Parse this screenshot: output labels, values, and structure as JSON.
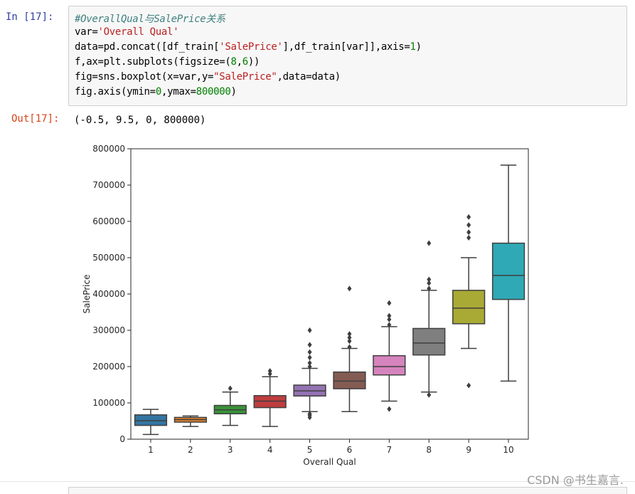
{
  "cell": {
    "in_prompt": "In  [17]:",
    "out_prompt": "Out[17]:",
    "code": {
      "comment": "#OverallQual与SalePrice关系",
      "line2": {
        "a": "var=",
        "s": "'Overall Qual'"
      },
      "line3": {
        "a": "data=pd.concat([df_train[",
        "s": "'SalePrice'",
        "b": "],df_train[var]],axis=",
        "n": "1",
        "c": ")"
      },
      "line4": {
        "a": "f,ax=plt.subplots(figsize=(",
        "n1": "8",
        "m": ",",
        "n2": "6",
        "c": "))"
      },
      "line5": {
        "a": "fig=sns.boxplot(x=var,y=",
        "s": "\"SalePrice\"",
        "b": ",data=data)"
      },
      "line6": {
        "a": "fig.axis(ymin=",
        "n1": "0",
        "m": ",ymax=",
        "n2": "800000",
        "c": ")"
      }
    },
    "output_text": "(-0.5, 9.5, 0, 800000)"
  },
  "chart_data": {
    "type": "boxplot",
    "xlabel": "Overall Qual",
    "ylabel": "SalePrice",
    "ylim": [
      0,
      800000
    ],
    "xlim": [
      -0.5,
      9.5
    ],
    "yticks": [
      0,
      100000,
      200000,
      300000,
      400000,
      500000,
      600000,
      700000,
      800000
    ],
    "categories": [
      "1",
      "2",
      "3",
      "4",
      "5",
      "6",
      "7",
      "8",
      "9",
      "10"
    ],
    "boxes": [
      {
        "category": "1",
        "whisker_low": 13000,
        "q1": 38000,
        "median": 51000,
        "q3": 67000,
        "whisker_high": 82000,
        "outliers": [],
        "color": "#3274a1"
      },
      {
        "category": "2",
        "whisker_low": 35000,
        "q1": 47000,
        "median": 54000,
        "q3": 60000,
        "whisker_high": 64000,
        "outliers": [],
        "color": "#e1812c"
      },
      {
        "category": "3",
        "whisker_low": 38000,
        "q1": 70000,
        "median": 81000,
        "q3": 93000,
        "whisker_high": 130000,
        "outliers": [
          140000
        ],
        "color": "#3a923a"
      },
      {
        "category": "4",
        "whisker_low": 35000,
        "q1": 87000,
        "median": 105000,
        "q3": 120000,
        "whisker_high": 172000,
        "outliers": [
          180000,
          188000
        ],
        "color": "#c03d3e"
      },
      {
        "category": "5",
        "whisker_low": 76000,
        "q1": 119000,
        "median": 133000,
        "q3": 149000,
        "whisker_high": 195000,
        "outliers": [
          60000,
          66000,
          70000,
          200000,
          210000,
          225000,
          240000,
          260000,
          300000
        ],
        "color": "#9372b2"
      },
      {
        "category": "6",
        "whisker_low": 76000,
        "q1": 139000,
        "median": 160000,
        "q3": 185000,
        "whisker_high": 250000,
        "outliers": [
          254000,
          270000,
          280000,
          290000,
          415000
        ],
        "color": "#845b53"
      },
      {
        "category": "7",
        "whisker_low": 105000,
        "q1": 177000,
        "median": 200000,
        "q3": 230000,
        "whisker_high": 310000,
        "outliers": [
          83000,
          315000,
          330000,
          340000,
          375000
        ],
        "color": "#d684bd"
      },
      {
        "category": "8",
        "whisker_low": 130000,
        "q1": 232000,
        "median": 265000,
        "q3": 305000,
        "whisker_high": 410000,
        "outliers": [
          122000,
          415000,
          430000,
          440000,
          540000
        ],
        "color": "#7f7f7f"
      },
      {
        "category": "9",
        "whisker_low": 250000,
        "q1": 318000,
        "median": 361000,
        "q3": 410000,
        "whisker_high": 500000,
        "outliers": [
          148000,
          555000,
          570000,
          590000,
          612000
        ],
        "color": "#a9aa35"
      },
      {
        "category": "10",
        "whisker_low": 160000,
        "q1": 385000,
        "median": 451000,
        "q3": 540000,
        "whisker_high": 755000,
        "outliers": [],
        "color": "#2fa9b5"
      }
    ]
  },
  "watermark": "CSDN @书生嘉言."
}
